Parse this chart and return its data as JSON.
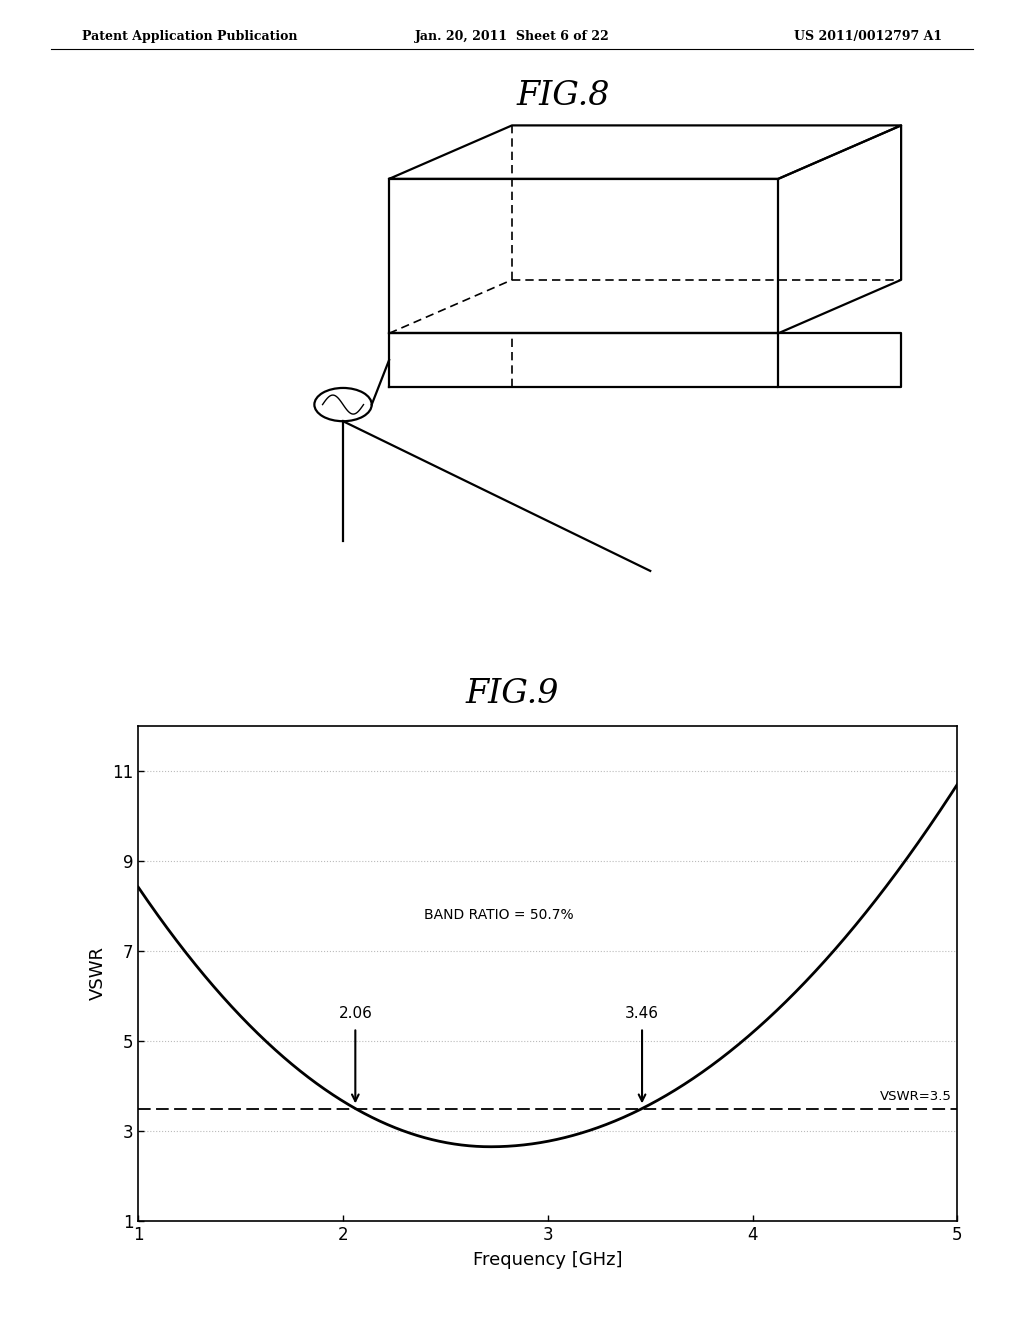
{
  "page_title_left": "Patent Application Publication",
  "page_title_mid": "Jan. 20, 2011  Sheet 6 of 22",
  "page_title_right": "US 2011/0012797 A1",
  "fig8_title": "FIG.8",
  "fig9_title": "FIG.9",
  "fig9_xlabel": "Frequency [GHz]",
  "fig9_ylabel": "VSWR",
  "fig9_xlim": [
    1,
    5
  ],
  "fig9_ylim": [
    1,
    12
  ],
  "fig9_xticks": [
    1,
    2,
    3,
    4,
    5
  ],
  "fig9_yticks": [
    1,
    3,
    5,
    7,
    9,
    11
  ],
  "fig9_vswr_line": 3.5,
  "fig9_vswr_label": "VSWR=3.5",
  "fig9_band_ratio": "BAND RATIO = 50.7%",
  "fig9_freq1": 2.06,
  "fig9_freq2": 3.46,
  "fig9_freq1_label": "2.06",
  "fig9_freq2_label": "3.46",
  "background_color": "#ffffff",
  "line_color": "#000000",
  "grid_color": "#bbbbbb"
}
